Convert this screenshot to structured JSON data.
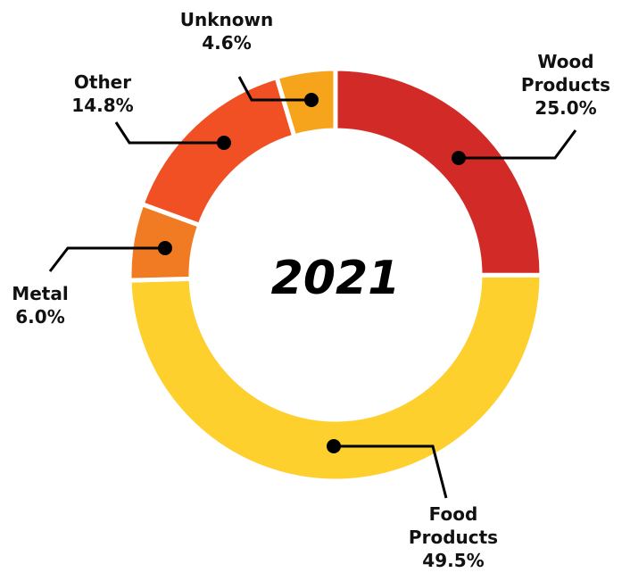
{
  "chart_data": {
    "type": "pie",
    "center_label": "2021",
    "slices": [
      {
        "name": "Wood Products",
        "label_lines": [
          "Wood",
          "Products"
        ],
        "value_label": "25.0%",
        "value": 25.0,
        "color": "#d22b27"
      },
      {
        "name": "Food Products",
        "label_lines": [
          "Food",
          "Products"
        ],
        "value_label": "49.5%",
        "value": 49.5,
        "color": "#fdd02e"
      },
      {
        "name": "Metal",
        "label_lines": [
          "Metal"
        ],
        "value_label": "6.0%",
        "value": 6.0,
        "color": "#f07b22"
      },
      {
        "name": "Other",
        "label_lines": [
          "Other"
        ],
        "value_label": "14.8%",
        "value": 14.8,
        "color": "#f05024"
      },
      {
        "name": "Unknown",
        "label_lines": [
          "Unknown"
        ],
        "value_label": "4.6%",
        "value": 4.6,
        "color": "#f7a41d"
      }
    ]
  }
}
